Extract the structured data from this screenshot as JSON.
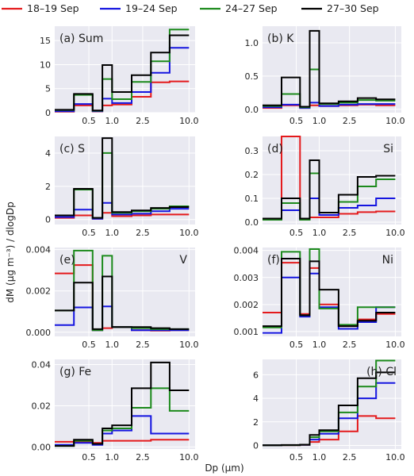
{
  "chart_data": {
    "type": "line",
    "step": true,
    "ylabel": "dM (μg m⁻³) / dlogDp",
    "xlabel": "Dp (μm)",
    "x_scale": "log",
    "xlim": [
      0.18,
      12
    ],
    "bin_edges": [
      0.18,
      0.32,
      0.56,
      0.75,
      1.0,
      1.8,
      3.2,
      5.6,
      10.0
    ],
    "xticks": [
      {
        "v": 0.5,
        "t": "0.5"
      },
      {
        "v": 1.0,
        "t": "1.0"
      },
      {
        "v": 2.5,
        "t": "2.5"
      },
      {
        "v": 10.0,
        "t": "10.0"
      }
    ],
    "legend": {
      "placement": "top",
      "entries": [
        {
          "label": "18–19 Sep",
          "color": "#e41a1c"
        },
        {
          "label": "19–24 Sep",
          "color": "#1515e0"
        },
        {
          "label": "24–27 Sep",
          "color": "#1c8a1c"
        },
        {
          "label": "27–30 Sep",
          "color": "#000000"
        }
      ]
    },
    "panels": [
      {
        "label": "(a) Sum",
        "label_pos": "left",
        "ylim": [
          0,
          18
        ],
        "yticks": [
          0,
          5,
          10,
          15
        ],
        "ytick_labels": [
          "0",
          "5",
          "10",
          "15"
        ],
        "series": [
          [
            0.2,
            1.5,
            0.25,
            1.5,
            1.7,
            3.3,
            6.3,
            6.5
          ],
          [
            0.3,
            1.8,
            0.3,
            2.9,
            2.0,
            4.3,
            8.3,
            13.5
          ],
          [
            0.55,
            3.7,
            0.4,
            7.0,
            2.8,
            6.4,
            10.7,
            17.3
          ],
          [
            0.6,
            3.9,
            0.45,
            9.9,
            4.3,
            7.8,
            12.5,
            16.1
          ]
        ]
      },
      {
        "label": "(b) K",
        "label_pos": "left",
        "ylim": [
          -0.05,
          1.25
        ],
        "yticks": [
          0,
          0.5,
          1.0
        ],
        "ytick_labels": [
          "0.0",
          "0.5",
          "1.0"
        ],
        "series": [
          [
            0.02,
            0.06,
            0.02,
            0.06,
            0.05,
            0.06,
            0.07,
            0.06
          ],
          [
            0.03,
            0.07,
            0.02,
            0.1,
            0.05,
            0.07,
            0.08,
            0.08
          ],
          [
            0.05,
            0.23,
            0.03,
            0.6,
            0.08,
            0.1,
            0.14,
            0.13
          ],
          [
            0.06,
            0.48,
            0.04,
            1.18,
            0.09,
            0.12,
            0.17,
            0.15
          ]
        ]
      },
      {
        "label": "(c) S",
        "label_pos": "left",
        "ylim": [
          -0.3,
          5.0
        ],
        "yticks": [
          0,
          2,
          4
        ],
        "ytick_labels": [
          "0",
          "2",
          "4"
        ],
        "series": [
          [
            0.1,
            0.25,
            0.05,
            0.4,
            0.2,
            0.25,
            0.3,
            0.3
          ],
          [
            0.15,
            0.6,
            0.05,
            1.0,
            0.3,
            0.35,
            0.5,
            0.65
          ],
          [
            0.25,
            1.8,
            0.1,
            4.0,
            0.4,
            0.5,
            0.65,
            0.8
          ],
          [
            0.25,
            1.85,
            0.1,
            4.9,
            0.45,
            0.55,
            0.7,
            0.75
          ]
        ]
      },
      {
        "label": "(d)",
        "label_pos": "left",
        "label2": "Si",
        "ylim": [
          -0.01,
          0.36
        ],
        "yticks": [
          0,
          0.1,
          0.2,
          0.3
        ],
        "ytick_labels": [
          "0.0",
          "0.1",
          "0.2",
          "0.3"
        ],
        "series": [
          [
            0.01,
            0.36,
            0.01,
            0.02,
            0.02,
            0.035,
            0.042,
            0.045
          ],
          [
            0.01,
            0.05,
            0.01,
            0.1,
            0.03,
            0.06,
            0.07,
            0.1
          ],
          [
            0.01,
            0.08,
            0.01,
            0.205,
            0.04,
            0.085,
            0.15,
            0.18
          ],
          [
            0.015,
            0.1,
            0.015,
            0.26,
            0.04,
            0.115,
            0.19,
            0.195
          ]
        ]
      },
      {
        "label": "(e)",
        "label_pos": "left",
        "label2": "V",
        "ylim": [
          -0.0002,
          0.0041
        ],
        "yticks": [
          0,
          0.002,
          0.004
        ],
        "ytick_labels": [
          "0.000",
          "0.002",
          "0.004"
        ],
        "series": [
          [
            0.00285,
            0.00325,
            0.0001,
            0.0002,
            0.00025,
            0.0001,
            8e-05,
            0.0001
          ],
          [
            0.00035,
            0.0012,
            0.0001,
            0.00125,
            0.00025,
            0.0001,
            0.0001,
            0.0001
          ],
          [
            0.00105,
            0.00395,
            0.0001,
            0.0037,
            0.00025,
            0.0002,
            0.00015,
            0.00015
          ],
          [
            0.00105,
            0.0024,
            0.00015,
            0.0027,
            0.00025,
            0.00025,
            0.0002,
            0.00015
          ]
        ]
      },
      {
        "label": "(f)",
        "label_pos": "left",
        "label2": "Ni",
        "ylim": [
          0.00082,
          0.00411
        ],
        "yticks": [
          0.001,
          0.002,
          0.003,
          0.004
        ],
        "ytick_labels": [
          "0.001",
          "0.002",
          "0.003",
          "0.004"
        ],
        "series": [
          [
            0.0017,
            0.00355,
            0.00165,
            0.00335,
            0.002,
            0.0012,
            0.00145,
            0.00165
          ],
          [
            0.00095,
            0.003,
            0.00155,
            0.00315,
            0.0019,
            0.0011,
            0.00135,
            0.0019
          ],
          [
            0.00115,
            0.00395,
            0.0016,
            0.00405,
            0.00185,
            0.00125,
            0.0019,
            0.0019
          ],
          [
            0.0012,
            0.0037,
            0.0016,
            0.0036,
            0.00255,
            0.0012,
            0.0014,
            0.0017
          ]
        ]
      },
      {
        "label": "(g) Fe",
        "label_pos": "left",
        "ylim": [
          -0.001,
          0.0425
        ],
        "yticks": [
          0,
          0.02,
          0.04
        ],
        "ytick_labels": [
          "0.00",
          "0.02",
          "0.04"
        ],
        "series": [
          [
            0.0025,
            0.0025,
            0.002,
            0.003,
            0.003,
            0.003,
            0.0035,
            0.0035
          ],
          [
            0.001,
            0.002,
            0.001,
            0.0065,
            0.008,
            0.015,
            0.0065,
            0.0065
          ],
          [
            0.0005,
            0.003,
            0.0015,
            0.008,
            0.009,
            0.019,
            0.0285,
            0.0175
          ],
          [
            0.0005,
            0.0035,
            0.0015,
            0.009,
            0.0105,
            0.0285,
            0.041,
            0.0275
          ]
        ]
      },
      {
        "label": "(h) Cl",
        "label_pos": "right",
        "ylim": [
          -0.3,
          7.3
        ],
        "yticks": [
          0,
          2,
          4,
          6
        ],
        "ytick_labels": [
          "0",
          "2",
          "4",
          "6"
        ],
        "series": [
          [
            0.02,
            0.02,
            0.04,
            0.3,
            0.5,
            1.2,
            2.5,
            2.3
          ],
          [
            0.02,
            0.03,
            0.05,
            0.5,
            1.0,
            2.3,
            4.0,
            5.3
          ],
          [
            0.02,
            0.03,
            0.06,
            0.7,
            1.2,
            2.8,
            5.0,
            7.2
          ],
          [
            0.02,
            0.04,
            0.07,
            0.9,
            1.3,
            3.4,
            5.7,
            6.2
          ]
        ]
      }
    ]
  }
}
